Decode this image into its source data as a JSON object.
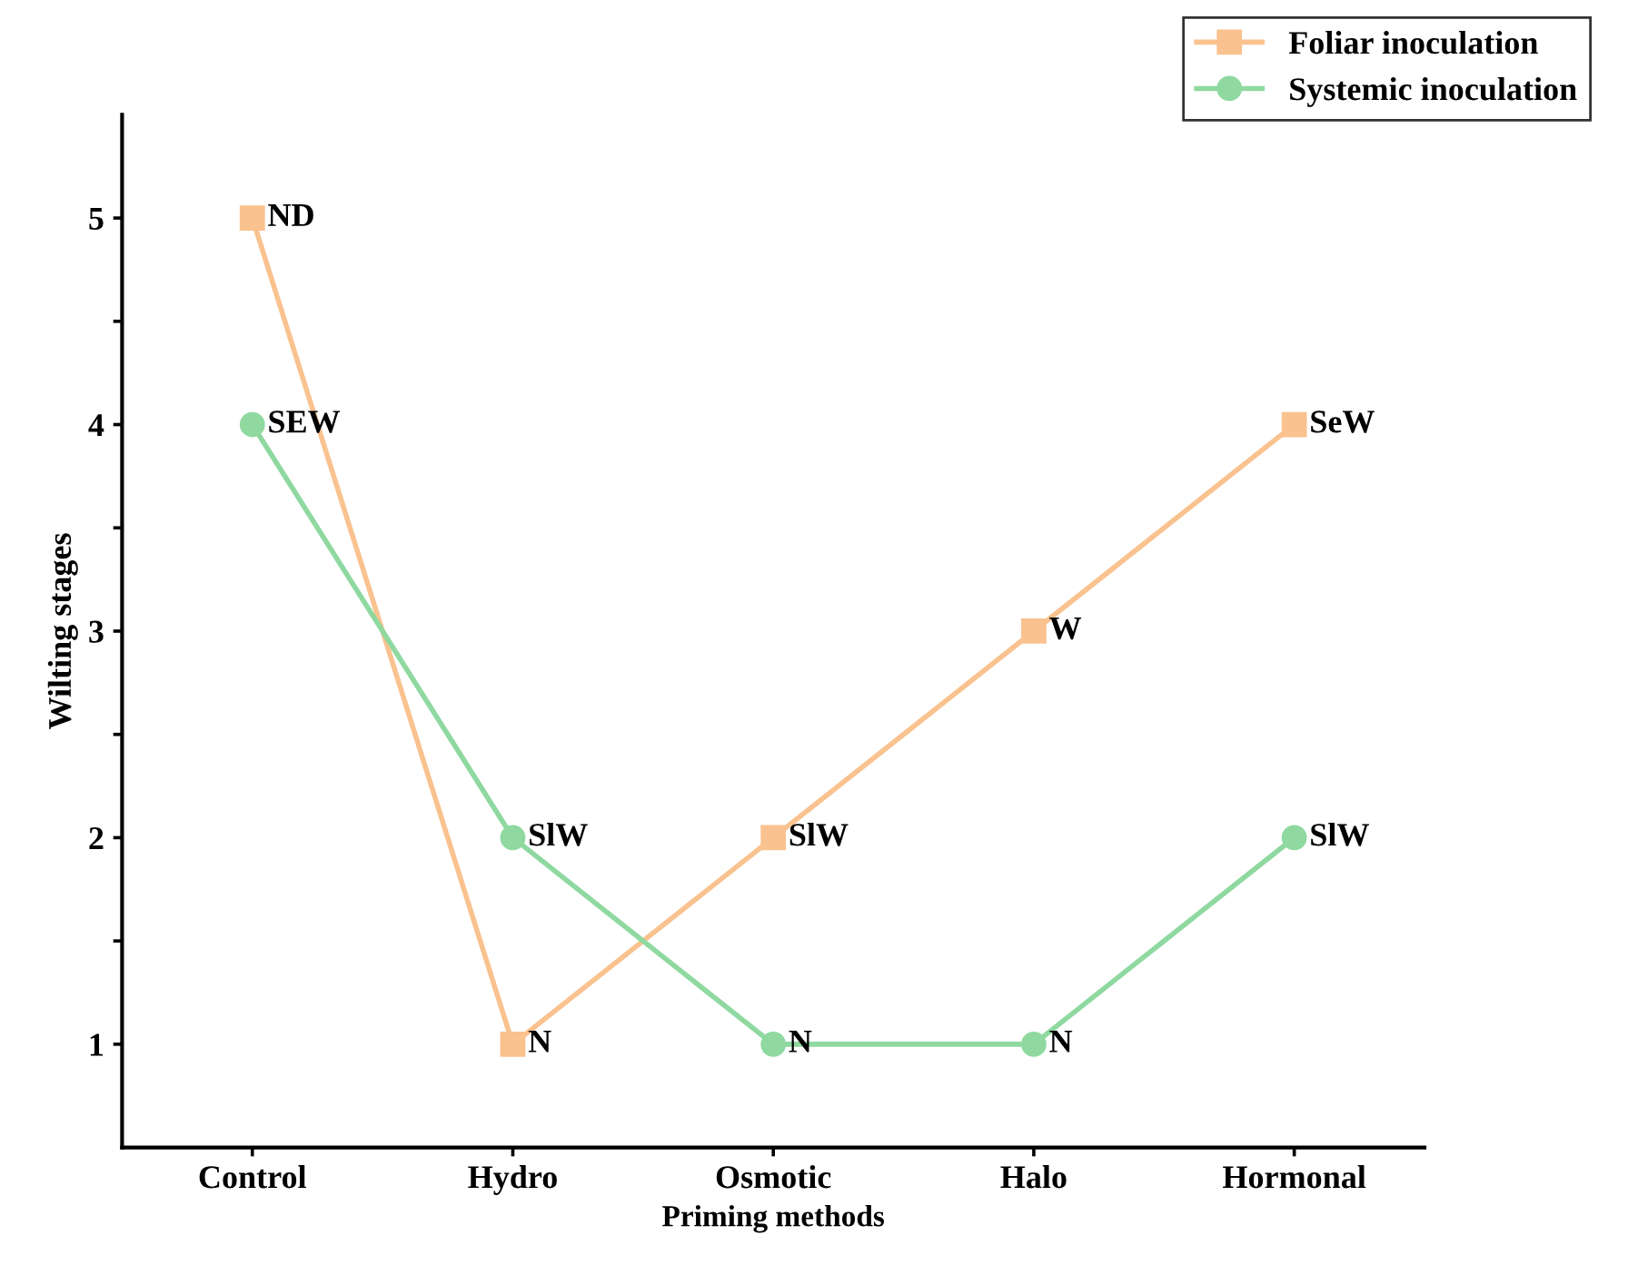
{
  "chart_data": {
    "type": "line",
    "xlabel": "Priming methods",
    "ylabel": "Wilting stages",
    "categories": [
      "Control",
      "Hydro",
      "Osmotic",
      "Halo",
      "Hormonal"
    ],
    "series": [
      {
        "name": "Foliar inoculation",
        "color": "#f9c28f",
        "marker": "square",
        "values": [
          5,
          1,
          2,
          3,
          4
        ],
        "value_labels": [
          "ND",
          "N",
          "SlW",
          "W",
          "SeW"
        ]
      },
      {
        "name": "Systemic inoculation",
        "color": "#8fd9a0",
        "marker": "circle",
        "values": [
          4,
          2,
          1,
          1,
          2
        ],
        "value_labels": [
          "SEW",
          "SlW",
          "N",
          "N",
          "SlW"
        ]
      }
    ],
    "ylim": [
      0.5,
      5.5
    ],
    "yticks": [
      1,
      {
        "value": 1.5,
        "label": null
      },
      2,
      {
        "value": 2.5,
        "label": null
      },
      3,
      {
        "value": 3.5,
        "label": null
      },
      4,
      {
        "value": 4.5,
        "label": null
      },
      5
    ],
    "grid": false,
    "legend": "top right",
    "line_style": "solid"
  }
}
